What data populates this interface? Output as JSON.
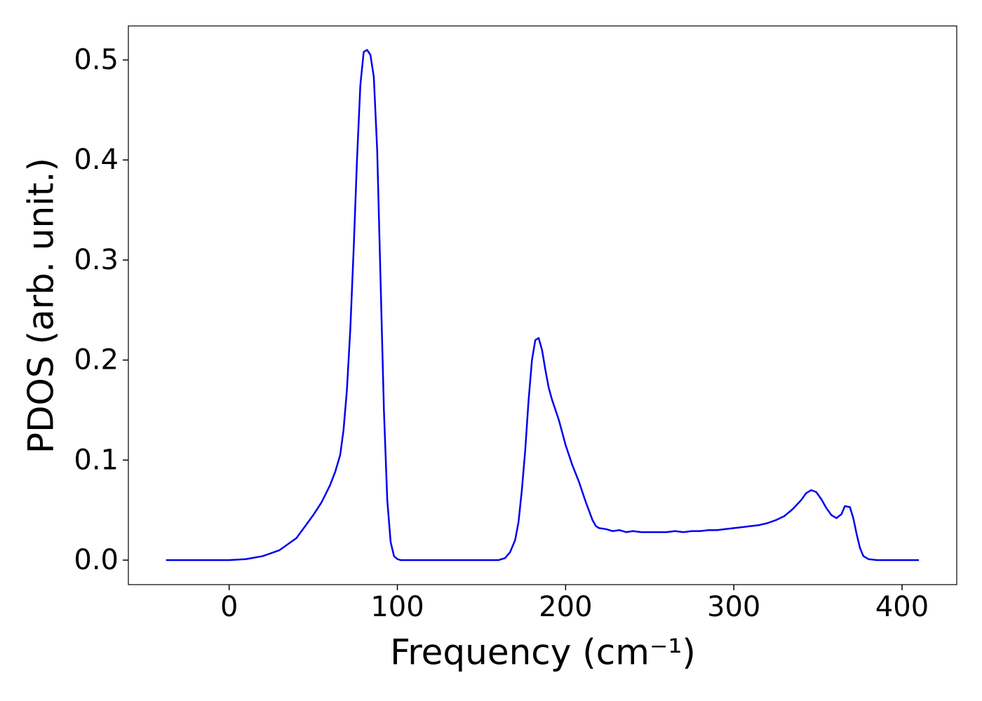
{
  "chart_data": {
    "type": "line",
    "xlabel": "Frequency (cm⁻¹)",
    "ylabel": "PDOS (arb. unit.)",
    "xlim": [
      -59.9,
      432.5
    ],
    "ylim": [
      -0.0245,
      0.534
    ],
    "xticks": [
      0,
      100,
      200,
      300,
      400
    ],
    "yticks": [
      {
        "value": 0,
        "label": "0.0"
      },
      0.1,
      0.2,
      0.3,
      0.4,
      0.5
    ],
    "series": [
      {
        "color": "#0000ee",
        "x": [
          -37.5,
          0,
          10,
          20,
          30,
          40,
          50,
          55,
          60,
          63,
          66,
          68,
          70,
          72,
          74,
          76,
          78,
          80,
          82,
          84,
          86,
          88,
          90,
          92,
          94,
          96,
          98,
          100,
          102,
          160,
          164,
          167,
          170,
          172,
          174,
          176,
          178,
          180,
          182,
          184,
          186,
          188,
          190,
          192,
          196,
          200,
          204,
          208,
          212,
          216,
          218,
          220,
          224,
          228,
          232,
          236,
          240,
          245,
          250,
          255,
          260,
          265,
          270,
          275,
          280,
          285,
          290,
          295,
          300,
          305,
          310,
          315,
          320,
          325,
          330,
          335,
          340,
          343,
          346,
          349,
          352,
          355,
          358,
          361,
          364,
          366,
          369,
          371,
          373,
          375,
          377,
          380,
          385,
          410
        ],
        "values": [
          0,
          0,
          0.001,
          0.004,
          0.01,
          0.022,
          0.045,
          0.058,
          0.075,
          0.088,
          0.105,
          0.13,
          0.17,
          0.23,
          0.31,
          0.4,
          0.475,
          0.508,
          0.51,
          0.505,
          0.483,
          0.41,
          0.28,
          0.15,
          0.06,
          0.018,
          0.004,
          0.001,
          0,
          0,
          0.002,
          0.008,
          0.02,
          0.038,
          0.07,
          0.11,
          0.16,
          0.2,
          0.22,
          0.222,
          0.21,
          0.19,
          0.172,
          0.16,
          0.14,
          0.115,
          0.095,
          0.078,
          0.058,
          0.04,
          0.034,
          0.032,
          0.031,
          0.029,
          0.03,
          0.028,
          0.029,
          0.028,
          0.028,
          0.028,
          0.028,
          0.029,
          0.028,
          0.029,
          0.029,
          0.03,
          0.03,
          0.031,
          0.032,
          0.033,
          0.034,
          0.035,
          0.037,
          0.04,
          0.044,
          0.051,
          0.06,
          0.067,
          0.07,
          0.068,
          0.061,
          0.052,
          0.045,
          0.042,
          0.046,
          0.054,
          0.053,
          0.042,
          0.026,
          0.012,
          0.004,
          0.001,
          0,
          0
        ]
      }
    ]
  }
}
